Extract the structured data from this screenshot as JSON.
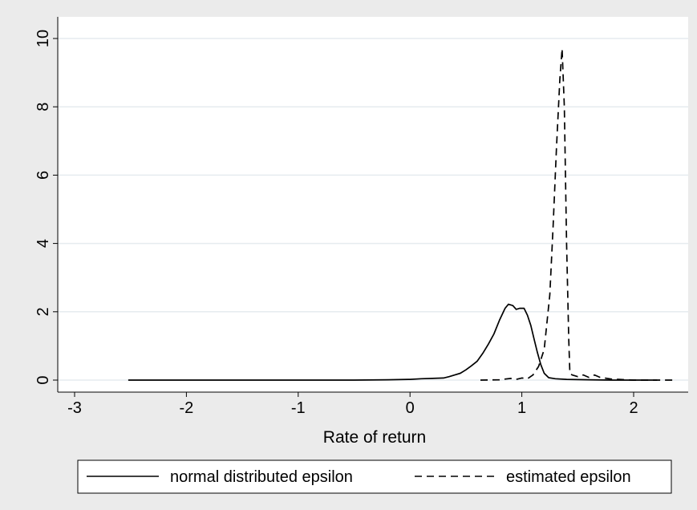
{
  "chart_data": {
    "type": "line",
    "xlabel": "Rate of return",
    "ylabel": "",
    "xlim": [
      -3,
      2.4
    ],
    "ylim": [
      0,
      10.2
    ],
    "x_ticks": [
      -3,
      -2,
      -1,
      0,
      1,
      2
    ],
    "y_ticks": [
      0,
      2,
      4,
      6,
      8,
      10
    ],
    "grid": "horizontal",
    "legend_position": "bottom",
    "series": [
      {
        "name": "normal distributed epsilon",
        "style": "solid",
        "color": "#000000",
        "points": [
          [
            -2.52,
            0
          ],
          [
            -2.0,
            0
          ],
          [
            -1.0,
            0
          ],
          [
            -0.5,
            0
          ],
          [
            -0.2,
            0.01
          ],
          [
            0.0,
            0.02
          ],
          [
            0.1,
            0.04
          ],
          [
            0.2,
            0.05
          ],
          [
            0.3,
            0.06
          ],
          [
            0.35,
            0.1
          ],
          [
            0.4,
            0.15
          ],
          [
            0.45,
            0.2
          ],
          [
            0.5,
            0.3
          ],
          [
            0.55,
            0.42
          ],
          [
            0.6,
            0.55
          ],
          [
            0.65,
            0.78
          ],
          [
            0.7,
            1.05
          ],
          [
            0.75,
            1.35
          ],
          [
            0.8,
            1.75
          ],
          [
            0.85,
            2.1
          ],
          [
            0.88,
            2.22
          ],
          [
            0.92,
            2.18
          ],
          [
            0.95,
            2.07
          ],
          [
            0.98,
            2.1
          ],
          [
            1.02,
            2.1
          ],
          [
            1.05,
            1.9
          ],
          [
            1.08,
            1.6
          ],
          [
            1.11,
            1.2
          ],
          [
            1.14,
            0.8
          ],
          [
            1.17,
            0.45
          ],
          [
            1.2,
            0.2
          ],
          [
            1.24,
            0.07
          ],
          [
            1.3,
            0.04
          ],
          [
            1.4,
            0.02
          ],
          [
            1.6,
            0.01
          ],
          [
            1.8,
            0.0
          ],
          [
            2.0,
            0.0
          ],
          [
            2.21,
            0.0
          ]
        ]
      },
      {
        "name": "estimated epsilon",
        "style": "dashed",
        "color": "#000000",
        "points": [
          [
            0.63,
            0.0
          ],
          [
            0.8,
            0.01
          ],
          [
            0.9,
            0.05
          ],
          [
            0.95,
            0.02
          ],
          [
            1.0,
            0.06
          ],
          [
            1.05,
            0.04
          ],
          [
            1.1,
            0.15
          ],
          [
            1.15,
            0.4
          ],
          [
            1.2,
            0.9
          ],
          [
            1.25,
            2.5
          ],
          [
            1.28,
            4.5
          ],
          [
            1.31,
            6.8
          ],
          [
            1.34,
            8.8
          ],
          [
            1.36,
            9.7
          ],
          [
            1.38,
            8.0
          ],
          [
            1.4,
            4.0
          ],
          [
            1.42,
            1.2
          ],
          [
            1.43,
            0.2
          ],
          [
            1.45,
            0.15
          ],
          [
            1.5,
            0.1
          ],
          [
            1.55,
            0.15
          ],
          [
            1.6,
            0.08
          ],
          [
            1.65,
            0.15
          ],
          [
            1.7,
            0.08
          ],
          [
            1.8,
            0.03
          ],
          [
            2.0,
            0.0
          ],
          [
            2.2,
            0.0
          ],
          [
            2.37,
            0.0
          ]
        ]
      }
    ]
  }
}
